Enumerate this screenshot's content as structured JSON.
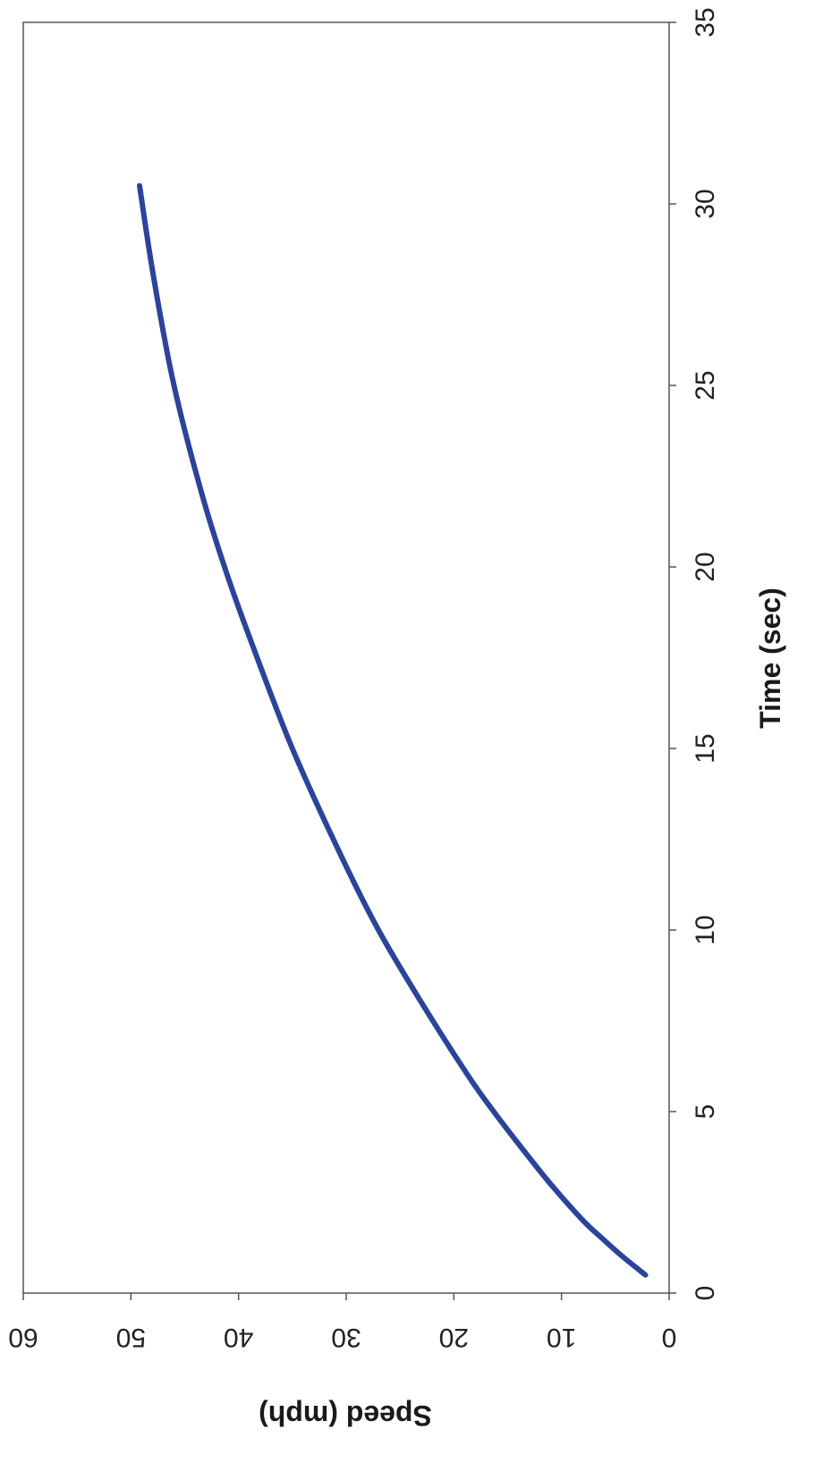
{
  "chart_data": {
    "type": "line",
    "orientation": "rotated 90° clockwise (x-axis runs top to bottom, y-axis runs right to left)",
    "xlabel": "Time (sec)",
    "ylabel": "Speed (mph)",
    "xlim": [
      0,
      35
    ],
    "ylim": [
      0,
      60
    ],
    "x_ticks": [
      "0",
      "5",
      "10",
      "15",
      "20",
      "25",
      "30",
      "35"
    ],
    "y_ticks": [
      "0",
      "10",
      "20",
      "30",
      "40",
      "50",
      "60"
    ],
    "grid": false,
    "legend": "none",
    "colors": {
      "line": "#2b4499",
      "frame": "#555555",
      "background": "#ffffff"
    },
    "series": [
      {
        "x": [
          0.5,
          1,
          1.5,
          2,
          3,
          4,
          5,
          6,
          8,
          10,
          12,
          15,
          18,
          20,
          22,
          25,
          28,
          30.5
        ],
        "values": [
          2.2,
          4.3,
          6.2,
          8.0,
          11.0,
          13.7,
          16.3,
          18.7,
          23.0,
          27.0,
          30.4,
          35.0,
          38.9,
          41.3,
          43.4,
          46.0,
          47.9,
          49.2
        ]
      }
    ]
  }
}
